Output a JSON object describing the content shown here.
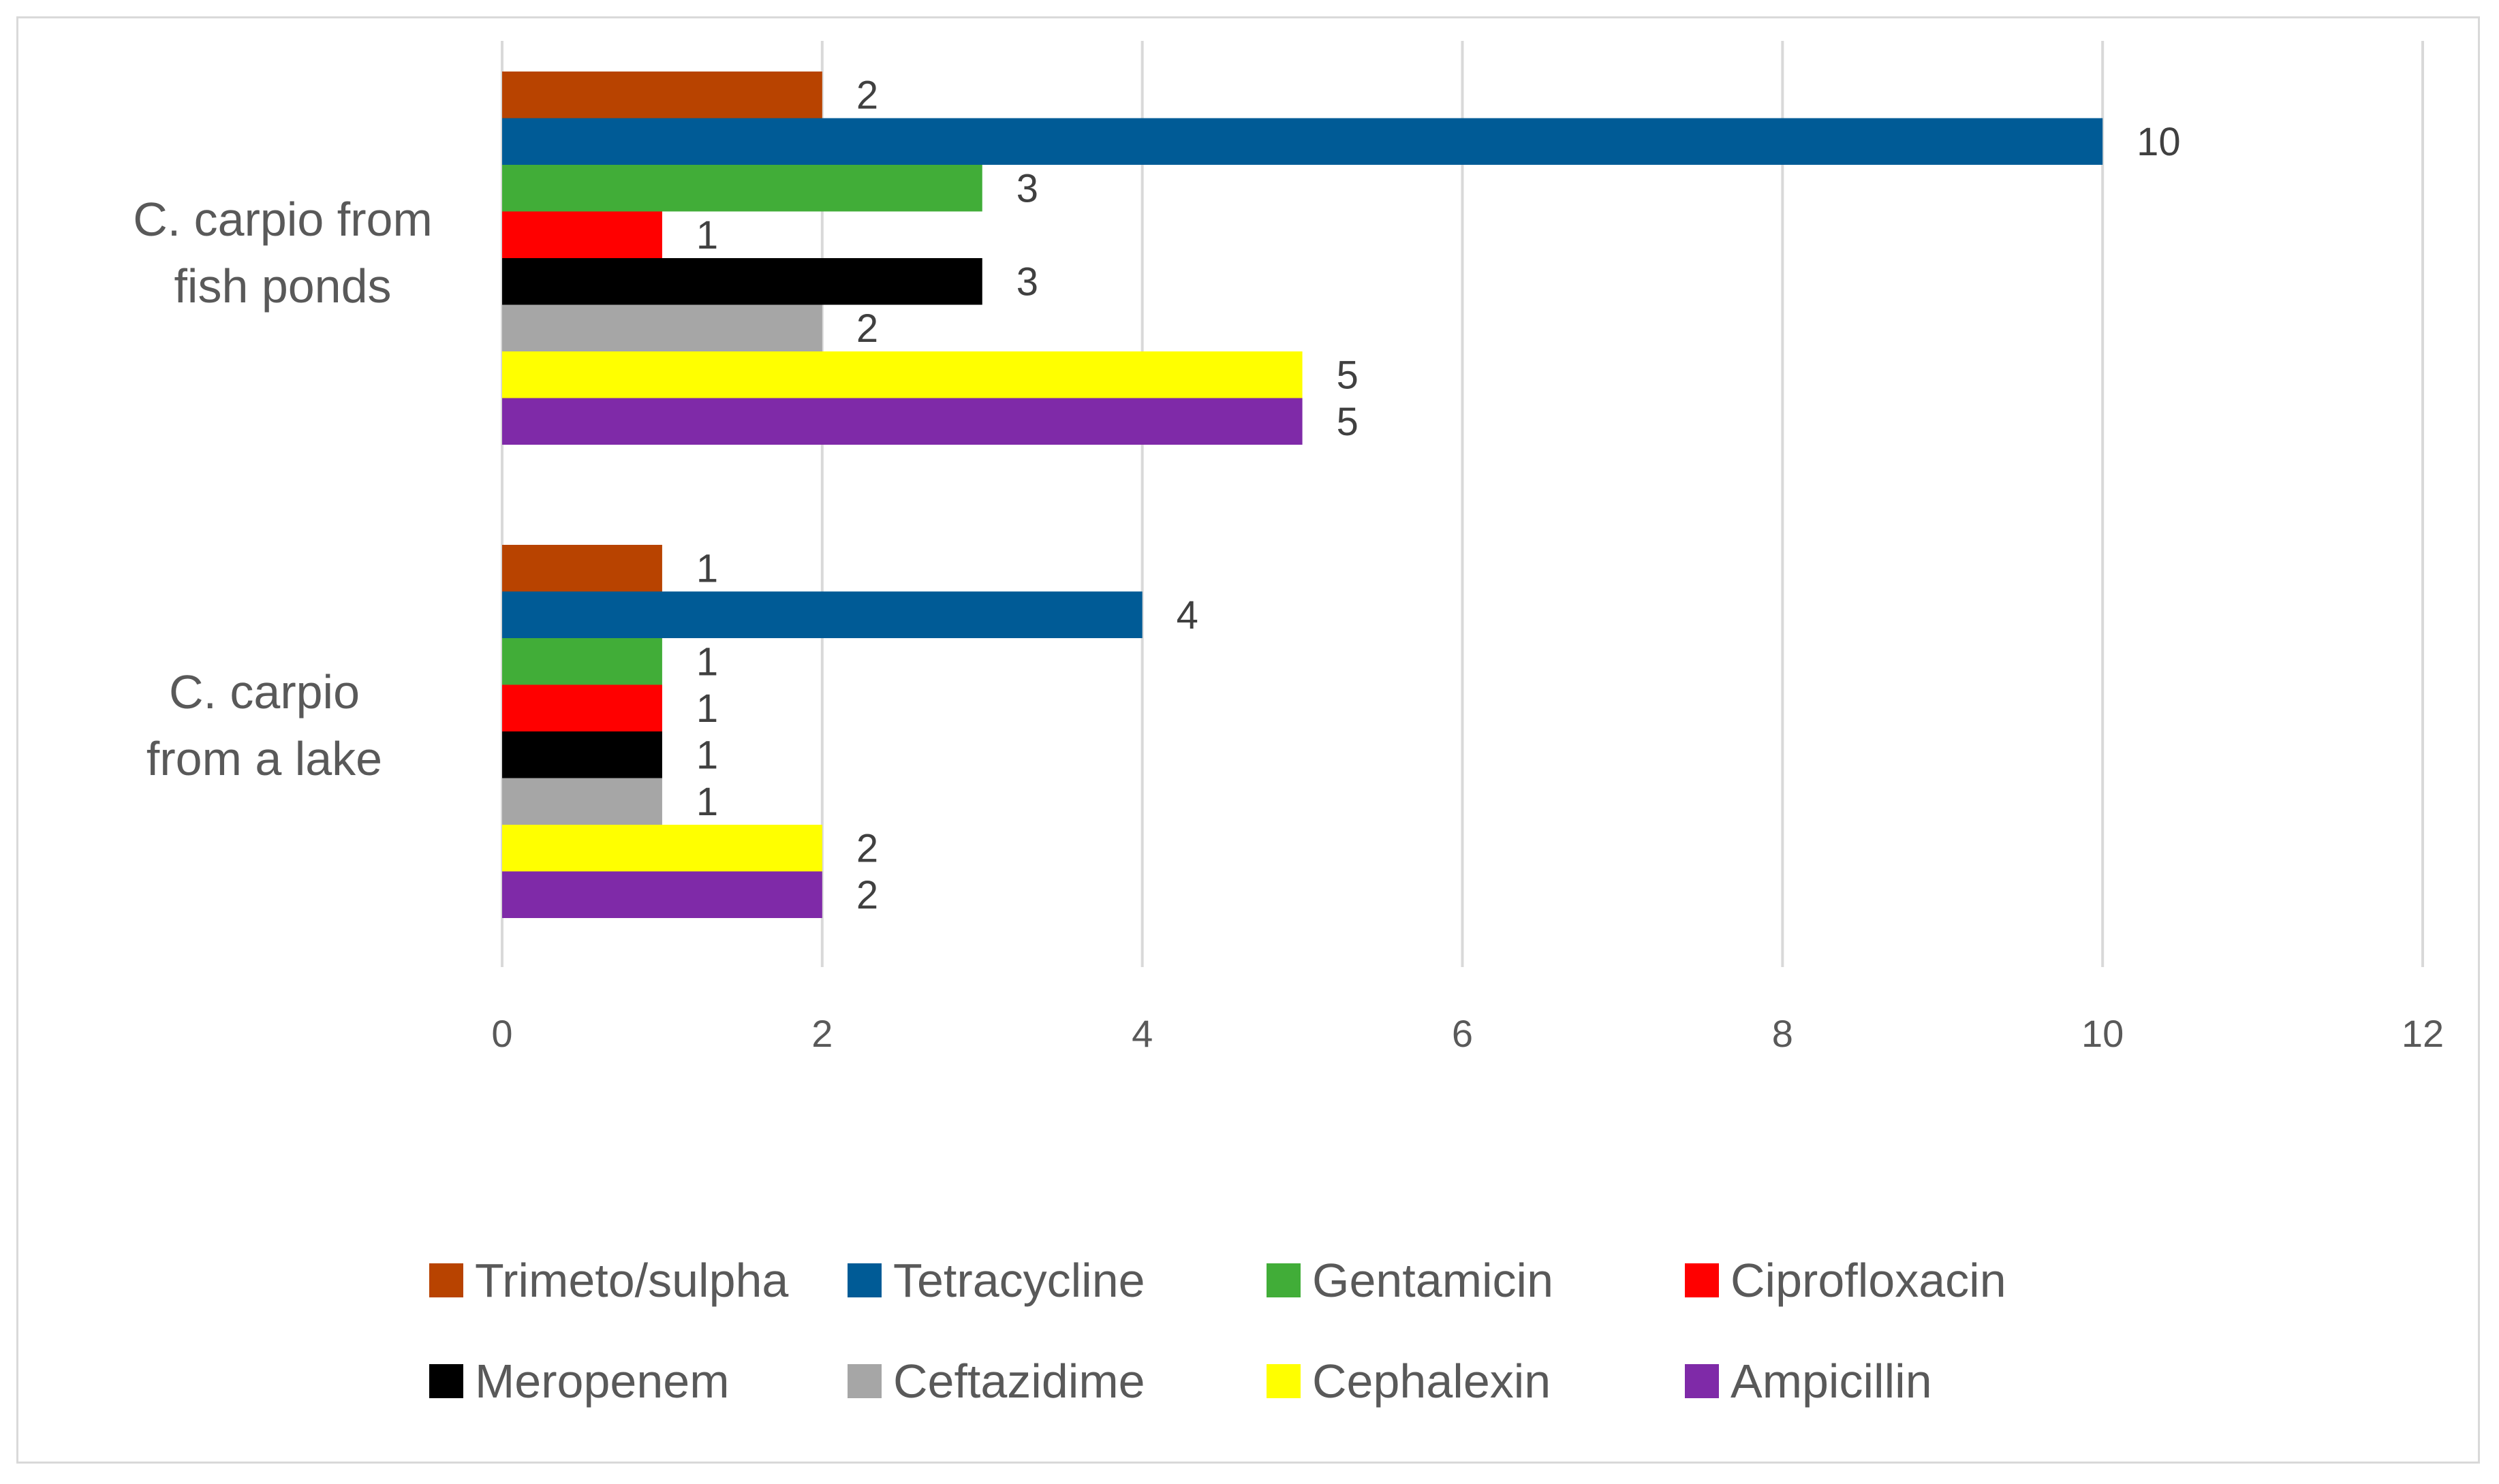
{
  "chart_data": {
    "type": "bar",
    "orientation": "horizontal",
    "title": "",
    "xlabel": "",
    "ylabel": "",
    "xlim": [
      0,
      12
    ],
    "x_ticks": [
      0,
      2,
      4,
      6,
      8,
      10,
      12
    ],
    "grid": true,
    "legend_position": "bottom",
    "categories": [
      "C. carpio from fish ponds",
      "C. carpio from a lake"
    ],
    "series": [
      {
        "name": "Trimeto/sulpha",
        "color": "#b84300",
        "values": [
          2,
          1
        ]
      },
      {
        "name": "Tetracycline",
        "color": "#005b96",
        "values": [
          10,
          4
        ]
      },
      {
        "name": "Gentamicin",
        "color": "#41ad38",
        "values": [
          3,
          1
        ]
      },
      {
        "name": "Ciprofloxacin",
        "color": "#ff0000",
        "values": [
          1,
          1
        ]
      },
      {
        "name": "Meropenem",
        "color": "#000000",
        "values": [
          3,
          1
        ]
      },
      {
        "name": "Ceftazidime",
        "color": "#a6a6a6",
        "values": [
          2,
          1
        ]
      },
      {
        "name": "Cephalexin",
        "color": "#ffff00",
        "values": [
          5,
          2
        ]
      },
      {
        "name": "Ampicillin",
        "color": "#7f2aa8",
        "values": [
          5,
          2
        ]
      }
    ]
  }
}
